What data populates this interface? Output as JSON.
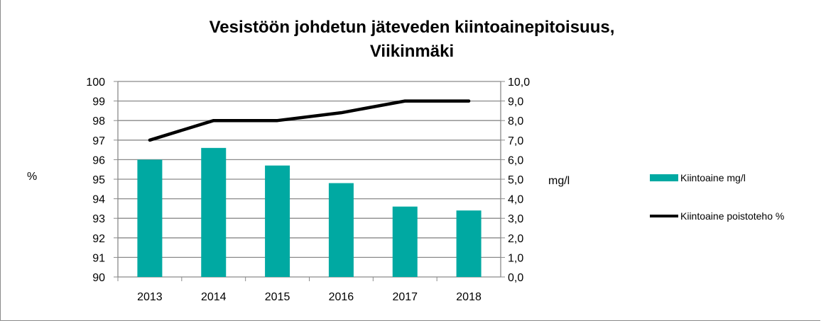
{
  "chart_data": {
    "type": "bar+line",
    "title": [
      "Vesistöön johdetun jäteveden kiintoainepitoisuus,",
      "Viikinmäki"
    ],
    "categories": [
      "2013",
      "2014",
      "2015",
      "2016",
      "2017",
      "2018"
    ],
    "ylabel_left": "%",
    "ylabel_right": "mg/l",
    "ylim_left": [
      90,
      100
    ],
    "ylim_right": [
      0,
      10
    ],
    "yticks_left": [
      "90",
      "91",
      "92",
      "93",
      "94",
      "95",
      "96",
      "97",
      "98",
      "99",
      "100"
    ],
    "yticks_right": [
      "0,0",
      "1,0",
      "2,0",
      "3,0",
      "4,0",
      "5,0",
      "6,0",
      "7,0",
      "8,0",
      "9,0",
      "10,0"
    ],
    "grid": true,
    "legend_position": "right",
    "series": [
      {
        "name": "Kiintoaine mg/l",
        "type": "bar",
        "axis": "right",
        "color": "#00a9a2",
        "values": [
          6.0,
          6.6,
          5.7,
          4.8,
          3.6,
          3.4
        ]
      },
      {
        "name": "Kiintoaine poistoteho %",
        "type": "line",
        "axis": "left",
        "color": "#000000",
        "values": [
          97,
          98,
          98,
          98.4,
          99,
          99
        ]
      }
    ]
  }
}
